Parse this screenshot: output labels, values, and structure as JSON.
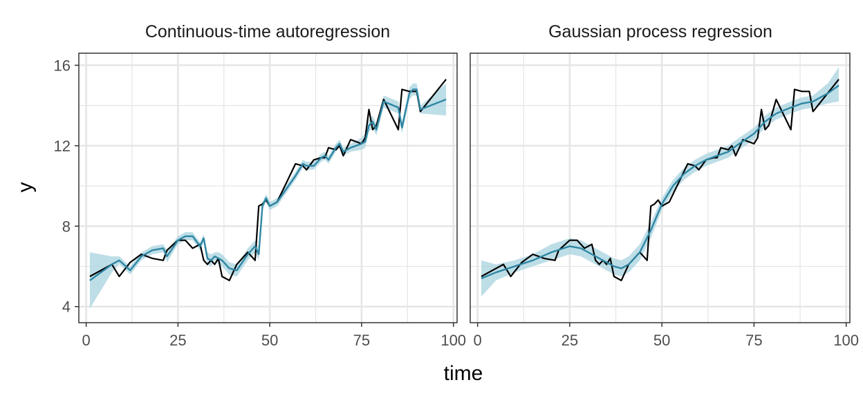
{
  "chart_data": {
    "type": "line",
    "xlabel": "time",
    "ylabel": "y",
    "x_ticks": [
      0,
      25,
      50,
      75,
      100
    ],
    "y_ticks": [
      4,
      8,
      12,
      16
    ],
    "xlim": [
      -2,
      101
    ],
    "ylim": [
      3.2,
      16.6
    ],
    "colors": {
      "observed": "#000000",
      "fit": "#2e86a3",
      "band": "#a8d3df",
      "grid": "#e6e6e6",
      "border": "#333333"
    },
    "observed": {
      "x": [
        1,
        7,
        9,
        12,
        15,
        18,
        21,
        22,
        25,
        27,
        29,
        31,
        32,
        33,
        34,
        35,
        36,
        37,
        39,
        41,
        44,
        46,
        47,
        48,
        49,
        50,
        52,
        57,
        59,
        60,
        62,
        64,
        65,
        66,
        68,
        69,
        70,
        71,
        72,
        75,
        76,
        77,
        78,
        79,
        81,
        85,
        86,
        88,
        89,
        90,
        91,
        98
      ],
      "values": [
        5.5,
        6.1,
        5.5,
        6.2,
        6.6,
        6.4,
        6.3,
        6.8,
        7.3,
        7.3,
        6.9,
        7.1,
        6.3,
        6.1,
        6.3,
        6.1,
        6.4,
        5.5,
        5.3,
        6.1,
        6.7,
        6.3,
        9.0,
        9.1,
        9.3,
        9.0,
        9.2,
        11.1,
        11.0,
        10.8,
        11.3,
        11.4,
        11.4,
        11.9,
        11.8,
        12.0,
        11.5,
        11.9,
        12.3,
        12.1,
        12.4,
        13.8,
        12.8,
        13.0,
        14.3,
        12.8,
        14.8,
        14.7,
        14.7,
        14.7,
        13.7,
        15.3
      ]
    },
    "panels": [
      {
        "title": "Continuous-time autoregression",
        "series": [
          {
            "x": [
              1,
              7,
              9,
              12,
              15,
              18,
              21,
              22,
              25,
              27,
              29,
              31,
              32,
              33,
              34,
              35,
              36,
              37,
              39,
              41,
              44,
              46,
              47,
              48,
              49,
              50,
              52,
              57,
              59,
              60,
              62,
              64,
              65,
              66,
              68,
              69,
              70,
              71,
              72,
              75,
              76,
              77,
              78,
              79,
              81,
              85,
              86,
              88,
              89,
              90,
              91,
              98
            ],
            "values": [
              5.3,
              6.1,
              6.3,
              5.8,
              6.5,
              6.8,
              6.9,
              6.5,
              7.3,
              7.5,
              7.5,
              7.0,
              7.4,
              6.4,
              6.3,
              6.5,
              6.4,
              6.3,
              5.9,
              5.8,
              6.6,
              7.0,
              6.6,
              9.0,
              9.4,
              9.0,
              9.2,
              10.5,
              11.1,
              11.0,
              11.0,
              11.4,
              11.5,
              11.3,
              11.9,
              12.1,
              11.7,
              11.8,
              11.9,
              12.1,
              12.2,
              13.0,
              13.2,
              12.8,
              14.2,
              13.9,
              12.9,
              14.6,
              14.8,
              14.8,
              13.8,
              14.3
            ],
            "lower": [
              3.9,
              5.7,
              6.1,
              5.6,
              6.3,
              6.6,
              6.7,
              6.2,
              7.1,
              7.3,
              7.3,
              6.8,
              7.2,
              6.1,
              6.0,
              6.3,
              6.1,
              6.0,
              5.6,
              5.5,
              6.3,
              6.7,
              6.3,
              8.8,
              9.2,
              8.8,
              9.0,
              10.3,
              10.9,
              10.8,
              10.8,
              11.2,
              11.3,
              11.1,
              11.7,
              11.9,
              11.5,
              11.6,
              11.7,
              11.8,
              11.9,
              12.7,
              12.9,
              12.5,
              13.9,
              13.6,
              12.6,
              14.3,
              14.5,
              14.5,
              13.6,
              13.5
            ],
            "upper": [
              6.7,
              6.5,
              6.5,
              6.0,
              6.7,
              7.0,
              7.1,
              6.8,
              7.5,
              7.7,
              7.7,
              7.2,
              7.6,
              6.7,
              6.6,
              6.7,
              6.7,
              6.6,
              6.2,
              6.1,
              6.9,
              7.3,
              6.9,
              9.2,
              9.6,
              9.2,
              9.4,
              10.7,
              11.3,
              11.2,
              11.2,
              11.6,
              11.7,
              11.5,
              12.1,
              12.3,
              11.9,
              12.0,
              12.1,
              12.4,
              12.6,
              13.3,
              13.5,
              13.1,
              14.5,
              14.2,
              13.2,
              14.9,
              15.1,
              15.1,
              14.0,
              15.1
            ]
          }
        ]
      },
      {
        "title": "Gaussian process regression",
        "series": [
          {
            "x": [
              1,
              5,
              10,
              15,
              20,
              25,
              28,
              31,
              34,
              37,
              39,
              41,
              44,
              47,
              50,
              53,
              56,
              59,
              62,
              65,
              68,
              71,
              75,
              78,
              81,
              85,
              88,
              91,
              95,
              98
            ],
            "values": [
              5.4,
              5.7,
              6.0,
              6.3,
              6.7,
              7.0,
              6.9,
              6.6,
              6.3,
              6.0,
              5.9,
              6.1,
              6.7,
              7.8,
              9.1,
              10.0,
              10.6,
              11.0,
              11.3,
              11.5,
              11.7,
              12.1,
              12.6,
              13.2,
              13.6,
              13.9,
              14.1,
              14.2,
              14.6,
              15.0
            ],
            "lower": [
              4.5,
              5.3,
              5.7,
              6.0,
              6.3,
              6.6,
              6.5,
              6.2,
              5.9,
              5.6,
              5.5,
              5.7,
              6.3,
              7.4,
              8.8,
              9.7,
              10.3,
              10.7,
              11.0,
              11.2,
              11.4,
              11.8,
              12.3,
              12.9,
              13.3,
              13.6,
              13.8,
              13.9,
              14.1,
              14.2
            ],
            "upper": [
              6.3,
              6.1,
              6.3,
              6.6,
              7.1,
              7.4,
              7.3,
              7.0,
              6.7,
              6.4,
              6.3,
              6.5,
              7.1,
              8.2,
              9.4,
              10.3,
              10.9,
              11.3,
              11.6,
              11.8,
              12.0,
              12.4,
              12.9,
              13.5,
              13.9,
              14.2,
              14.4,
              14.5,
              15.1,
              15.9
            ]
          }
        ]
      }
    ]
  }
}
